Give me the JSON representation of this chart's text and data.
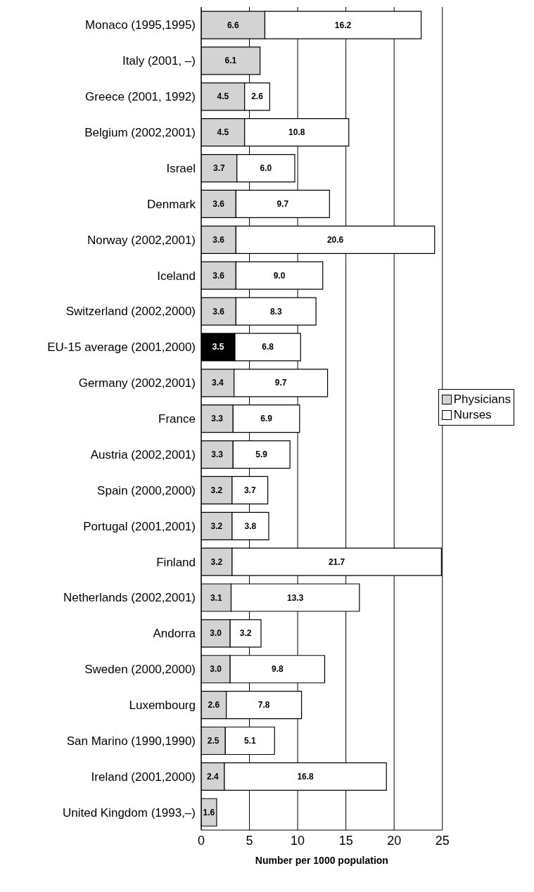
{
  "chart_data": {
    "type": "bar",
    "orientation": "horizontal",
    "stacked": true,
    "xlabel": "Number per 1000 population",
    "categories": [
      "Monaco (1995,1995)",
      "Italy (2001, –)",
      "Greece (2001, 1992)",
      "Belgium (2002,2001)",
      "Israel",
      "Denmark",
      "Norway (2002,2001)",
      "Iceland",
      "Switzerland (2002,2000)",
      "EU-15 average (2001,2000)",
      "Germany (2002,2001)",
      "France",
      "Austria (2002,2001)",
      "Spain (2000,2000)",
      "Portugal (2001,2001)",
      "Finland",
      "Netherlands (2002,2001)",
      "Andorra",
      "Sweden (2000,2000)",
      "Luxembourg",
      "San Marino (1990,1990)",
      "Ireland (2001,2000)",
      "United Kingdom (1993,–)"
    ],
    "series": [
      {
        "name": "Physicians",
        "color": "#d3d3d3",
        "colors": [
          "#d3d3d3",
          "#d3d3d3",
          "#d3d3d3",
          "#d3d3d3",
          "#d3d3d3",
          "#d3d3d3",
          "#d3d3d3",
          "#d3d3d3",
          "#d3d3d3",
          "#000000",
          "#d3d3d3",
          "#d3d3d3",
          "#d3d3d3",
          "#d3d3d3",
          "#d3d3d3",
          "#d3d3d3",
          "#d3d3d3",
          "#d3d3d3",
          "#d3d3d3",
          "#d3d3d3",
          "#d3d3d3",
          "#d3d3d3",
          "#d3d3d3"
        ],
        "values": [
          6.6,
          6.1,
          4.5,
          4.5,
          3.7,
          3.6,
          3.6,
          3.6,
          3.6,
          3.5,
          3.4,
          3.3,
          3.3,
          3.2,
          3.2,
          3.2,
          3.1,
          3.0,
          3.0,
          2.6,
          2.5,
          2.4,
          1.6
        ],
        "value_labels": [
          "6.6",
          "6.1",
          "4.5",
          "4.5",
          "3.7",
          "3.6",
          "3.6",
          "3.6",
          "3.6",
          "3.5",
          "3.4",
          "3.3",
          "3.3",
          "3.2",
          "3.2",
          "3.2",
          "3.1",
          "3.0",
          "3.0",
          "2.6",
          "2.5",
          "2.4",
          "1.6"
        ]
      },
      {
        "name": "Nurses",
        "color": "#ffffff",
        "values": [
          16.2,
          null,
          2.6,
          10.8,
          6.0,
          9.7,
          20.6,
          9.0,
          8.3,
          6.8,
          9.7,
          6.9,
          5.9,
          3.7,
          3.8,
          21.7,
          13.3,
          3.2,
          9.8,
          7.8,
          5.1,
          16.8,
          null
        ],
        "value_labels": [
          "16.2",
          null,
          "2.6",
          "10.8",
          "6.0",
          "9.7",
          "20.6",
          "9.0",
          "8.3",
          "6.8",
          "9.7",
          "6.9",
          "5.9",
          "3.7",
          "3.8",
          "21.7",
          "13.3",
          "3.2",
          "9.8",
          "7.8",
          "5.1",
          "16.8",
          null
        ]
      }
    ],
    "xlim": [
      0,
      25
    ],
    "xticks": [
      0,
      5,
      10,
      15,
      20,
      25
    ],
    "grid": "x",
    "legend": "right"
  }
}
